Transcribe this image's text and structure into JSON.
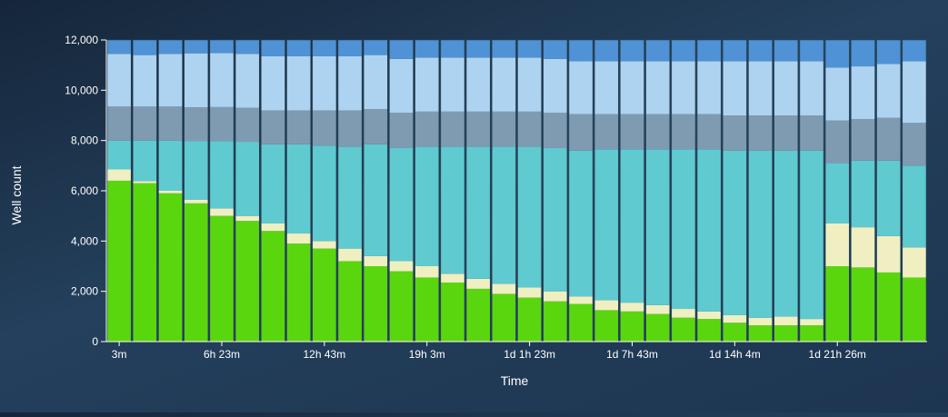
{
  "chart_data": {
    "type": "bar",
    "stacked": true,
    "title": "",
    "xlabel": "Time",
    "ylabel": "Well count",
    "ylim": [
      0,
      12000
    ],
    "y_ticks": [
      0,
      2000,
      4000,
      6000,
      8000,
      10000,
      12000
    ],
    "y_tick_labels": [
      "0",
      "2,000",
      "4,000",
      "6,000",
      "8,000",
      "10,000",
      "12,000"
    ],
    "categories": [
      "3m",
      "",
      "",
      "",
      "6h 23m",
      "",
      "",
      "",
      "12h 43m",
      "",
      "",
      "",
      "19h 3m",
      "",
      "",
      "",
      "1d 1h 23m",
      "",
      "",
      "",
      "1d 7h 43m",
      "",
      "",
      "",
      "1d 14h 4m",
      "",
      "",
      "",
      "1d 21h 26m",
      "",
      "",
      ""
    ],
    "x_tick_labels": [
      {
        "index": 0,
        "label": "3m"
      },
      {
        "index": 4,
        "label": "6h 23m"
      },
      {
        "index": 8,
        "label": "12h 43m"
      },
      {
        "index": 12,
        "label": "19h 3m"
      },
      {
        "index": 16,
        "label": "1d 1h 23m"
      },
      {
        "index": 20,
        "label": "1d 7h 43m"
      },
      {
        "index": 24,
        "label": "1d 14h 4m"
      },
      {
        "index": 28,
        "label": "1d 21h 26m"
      }
    ],
    "grid": false,
    "legend": "none",
    "series": [
      {
        "color": "#5ad60f",
        "values": [
          6400,
          6300,
          5900,
          5500,
          5000,
          4800,
          4400,
          3900,
          3700,
          3200,
          3000,
          2800,
          2550,
          2350,
          2100,
          1900,
          1750,
          1600,
          1500,
          1250,
          1200,
          1100,
          950,
          900,
          750,
          650,
          650,
          650,
          3000,
          2950,
          2750,
          2550
        ]
      },
      {
        "color": "#efefc2",
        "values": [
          450,
          90,
          100,
          150,
          300,
          200,
          300,
          400,
          300,
          500,
          400,
          400,
          450,
          350,
          400,
          400,
          400,
          400,
          300,
          400,
          350,
          350,
          350,
          300,
          300,
          300,
          350,
          250,
          1700,
          1600,
          1450,
          1200
        ]
      },
      {
        "color": "#5fcacf",
        "values": [
          1150,
          1610,
          2000,
          2320,
          2680,
          2950,
          3150,
          3550,
          3800,
          4050,
          4450,
          4500,
          4750,
          5050,
          5250,
          5450,
          5600,
          5700,
          5800,
          6000,
          6100,
          6200,
          6350,
          6450,
          6550,
          6650,
          6600,
          6700,
          2400,
          2650,
          3000,
          3250
        ]
      },
      {
        "color": "#7f9bb1",
        "values": [
          1350,
          1350,
          1350,
          1350,
          1350,
          1350,
          1350,
          1350,
          1400,
          1450,
          1400,
          1400,
          1400,
          1400,
          1400,
          1400,
          1400,
          1400,
          1450,
          1400,
          1400,
          1400,
          1400,
          1400,
          1400,
          1400,
          1400,
          1400,
          1700,
          1650,
          1700,
          1700
        ]
      },
      {
        "color": "#aed3f0",
        "values": [
          2100,
          2050,
          2100,
          2150,
          2150,
          2150,
          2150,
          2150,
          2150,
          2150,
          2150,
          2150,
          2150,
          2150,
          2150,
          2150,
          2150,
          2150,
          2100,
          2100,
          2100,
          2100,
          2100,
          2100,
          2150,
          2150,
          2150,
          2150,
          2100,
          2100,
          2150,
          2450
        ]
      },
      {
        "color": "#4f92d5",
        "values": [
          550,
          600,
          550,
          530,
          520,
          550,
          650,
          650,
          650,
          650,
          600,
          750,
          700,
          700,
          700,
          700,
          700,
          750,
          850,
          850,
          850,
          850,
          850,
          850,
          850,
          850,
          850,
          850,
          1100,
          1050,
          950,
          850
        ]
      }
    ]
  }
}
